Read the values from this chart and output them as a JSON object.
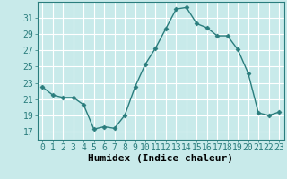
{
  "x": [
    0,
    1,
    2,
    3,
    4,
    5,
    6,
    7,
    8,
    9,
    10,
    11,
    12,
    13,
    14,
    15,
    16,
    17,
    18,
    19,
    20,
    21,
    22,
    23
  ],
  "y": [
    22.5,
    21.5,
    21.2,
    21.2,
    20.3,
    17.3,
    17.6,
    17.4,
    19.0,
    22.5,
    25.3,
    27.3,
    29.7,
    32.1,
    32.3,
    30.3,
    29.8,
    28.8,
    28.8,
    27.1,
    24.2,
    19.3,
    19.0,
    19.4
  ],
  "line_color": "#2a7d7d",
  "marker": "D",
  "marker_size": 2.5,
  "bg_color": "#c8eaea",
  "grid_color": "#ffffff",
  "xlabel": "Humidex (Indice chaleur)",
  "xlim": [
    -0.5,
    23.5
  ],
  "ylim": [
    16.0,
    33.0
  ],
  "yticks": [
    17,
    19,
    21,
    23,
    25,
    27,
    29,
    31
  ],
  "xticks": [
    0,
    1,
    2,
    3,
    4,
    5,
    6,
    7,
    8,
    9,
    10,
    11,
    12,
    13,
    14,
    15,
    16,
    17,
    18,
    19,
    20,
    21,
    22,
    23
  ],
  "xlabel_fontsize": 8,
  "tick_fontsize": 7,
  "linewidth": 1.0
}
